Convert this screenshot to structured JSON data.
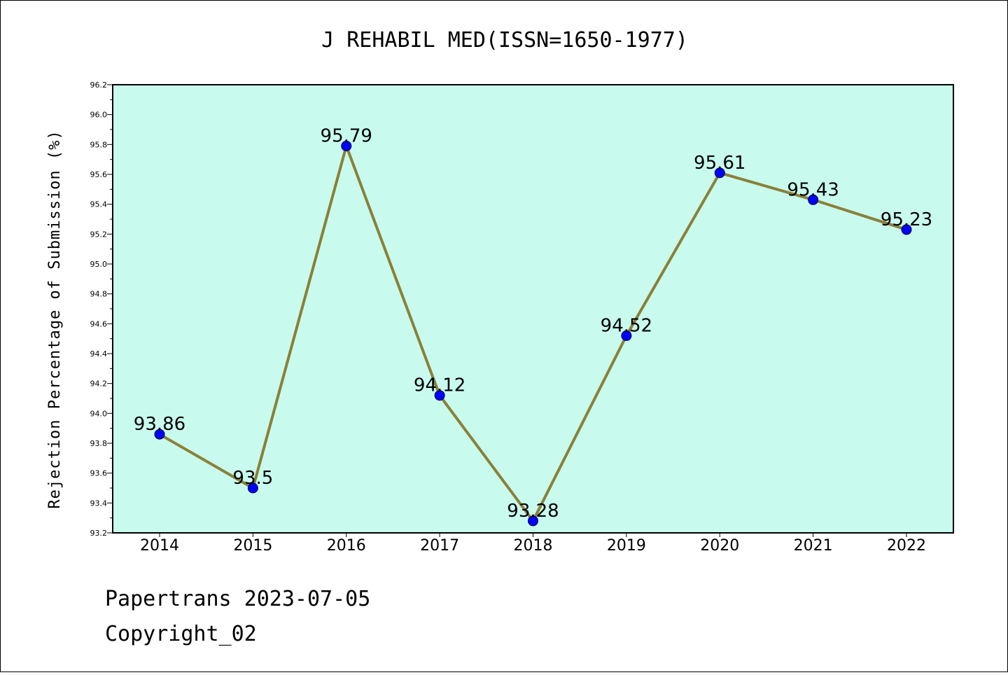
{
  "chart_data": {
    "type": "line",
    "title": "J REHABIL MED(ISSN=1650-1977)",
    "xlabel": "",
    "ylabel": "Rejection Percentage of Submission (%)",
    "categories": [
      "2014",
      "2015",
      "2016",
      "2017",
      "2018",
      "2019",
      "2020",
      "2021",
      "2022"
    ],
    "series": [
      {
        "values": [
          93.86,
          93.5,
          95.79,
          94.12,
          93.28,
          94.52,
          95.61,
          95.43,
          95.23
        ],
        "data_labels": [
          "93.86",
          "93.5",
          "95.79",
          "94.12",
          "93.28",
          "94.52",
          "95.61",
          "95.43",
          "95.23"
        ]
      }
    ],
    "ylim": [
      93.2,
      96.2
    ],
    "yticks": [
      "93.2",
      "93.4",
      "93.6",
      "93.8",
      "94.0",
      "94.2",
      "94.4",
      "94.6",
      "94.8",
      "95.0",
      "95.2",
      "95.4",
      "95.6",
      "95.8",
      "96.0",
      "96.2"
    ],
    "grid": false,
    "colors": {
      "plot_background": "#c8fbee",
      "line": "#8b8038",
      "marker": "#0000ff"
    }
  },
  "footer": {
    "line1": "Papertrans 2023-07-05",
    "line2": "Copyright_02"
  }
}
